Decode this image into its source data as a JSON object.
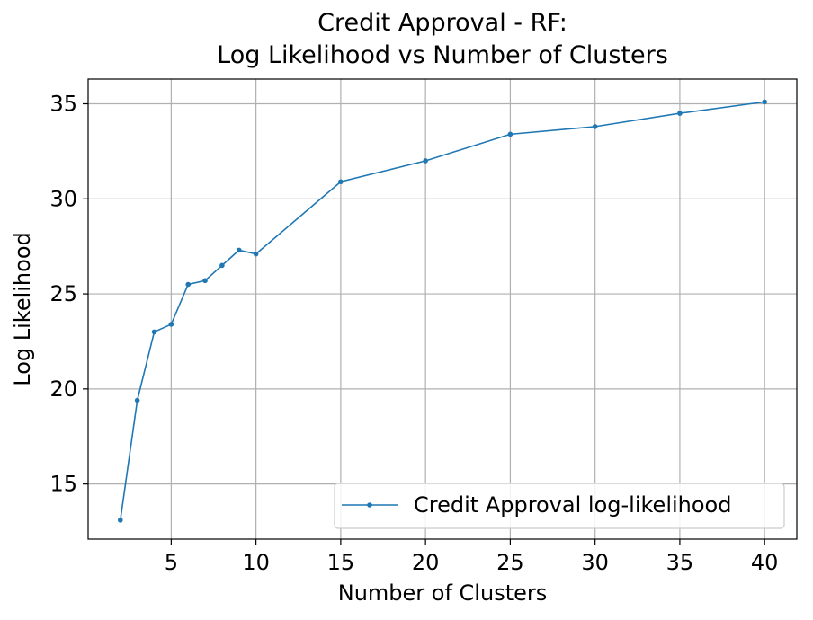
{
  "chart_data": {
    "type": "line",
    "title_lines": [
      "Credit Approval - RF:",
      "Log Likelihood vs Number of Clusters"
    ],
    "xlabel": "Number of Clusters",
    "ylabel": "Log Likelihood",
    "xlim": [
      0.1,
      41.9
    ],
    "ylim": [
      12.1,
      36.3
    ],
    "xticks": [
      5,
      10,
      15,
      20,
      25,
      30,
      35,
      40
    ],
    "yticks": [
      15,
      20,
      25,
      30,
      35
    ],
    "grid": true,
    "legend_position": "lower-right",
    "series": [
      {
        "name": "Credit Approval log-likelihood",
        "color": "#1f77b4",
        "x": [
          2,
          3,
          4,
          5,
          6,
          7,
          8,
          9,
          10,
          15,
          20,
          25,
          30,
          35,
          40
        ],
        "y": [
          13.1,
          19.4,
          23.0,
          23.4,
          25.5,
          25.7,
          26.5,
          27.3,
          27.1,
          30.9,
          32.0,
          33.4,
          33.8,
          34.5,
          35.1
        ]
      }
    ]
  }
}
